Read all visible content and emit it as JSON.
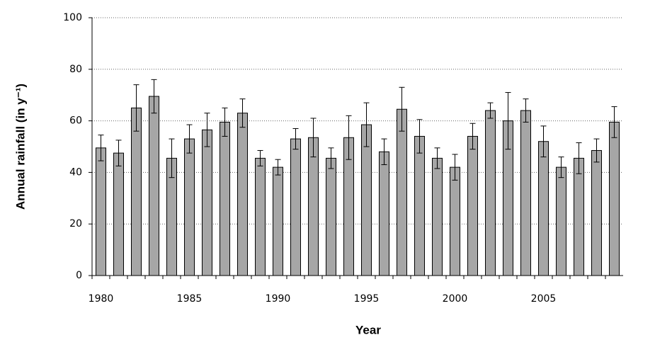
{
  "chart_data": {
    "type": "bar",
    "x_label": "Year",
    "y_label": "Annual rainfall (in y⁻¹)",
    "categories": [
      "1980",
      null,
      null,
      null,
      null,
      "1985",
      null,
      null,
      null,
      null,
      "1990",
      null,
      null,
      null,
      null,
      "1995",
      null,
      null,
      null,
      null,
      "2000",
      null,
      null,
      null,
      null,
      "2005",
      null,
      null,
      null,
      null
    ],
    "values": [
      49.5,
      47.5,
      65,
      69.5,
      45.5,
      53,
      56.5,
      59.5,
      63,
      45.5,
      42,
      53,
      53.5,
      45.5,
      53.5,
      58.5,
      48,
      64.5,
      54,
      45.5,
      42,
      54,
      64,
      60,
      64,
      52,
      42,
      45.5,
      48.5,
      59.5
    ],
    "errors": [
      5,
      5,
      9,
      6.5,
      7.5,
      5.5,
      6.5,
      5.5,
      5.5,
      3,
      3,
      4,
      7.5,
      4,
      8.5,
      8.5,
      5,
      8.5,
      6.5,
      4,
      5,
      5,
      3,
      11,
      4.5,
      6,
      4,
      6,
      4.5,
      6
    ],
    "color": "#a6a6a6",
    "ylim": [
      0,
      100
    ],
    "yticks": [
      0,
      20,
      40,
      60,
      80,
      100
    ],
    "grid": true
  }
}
